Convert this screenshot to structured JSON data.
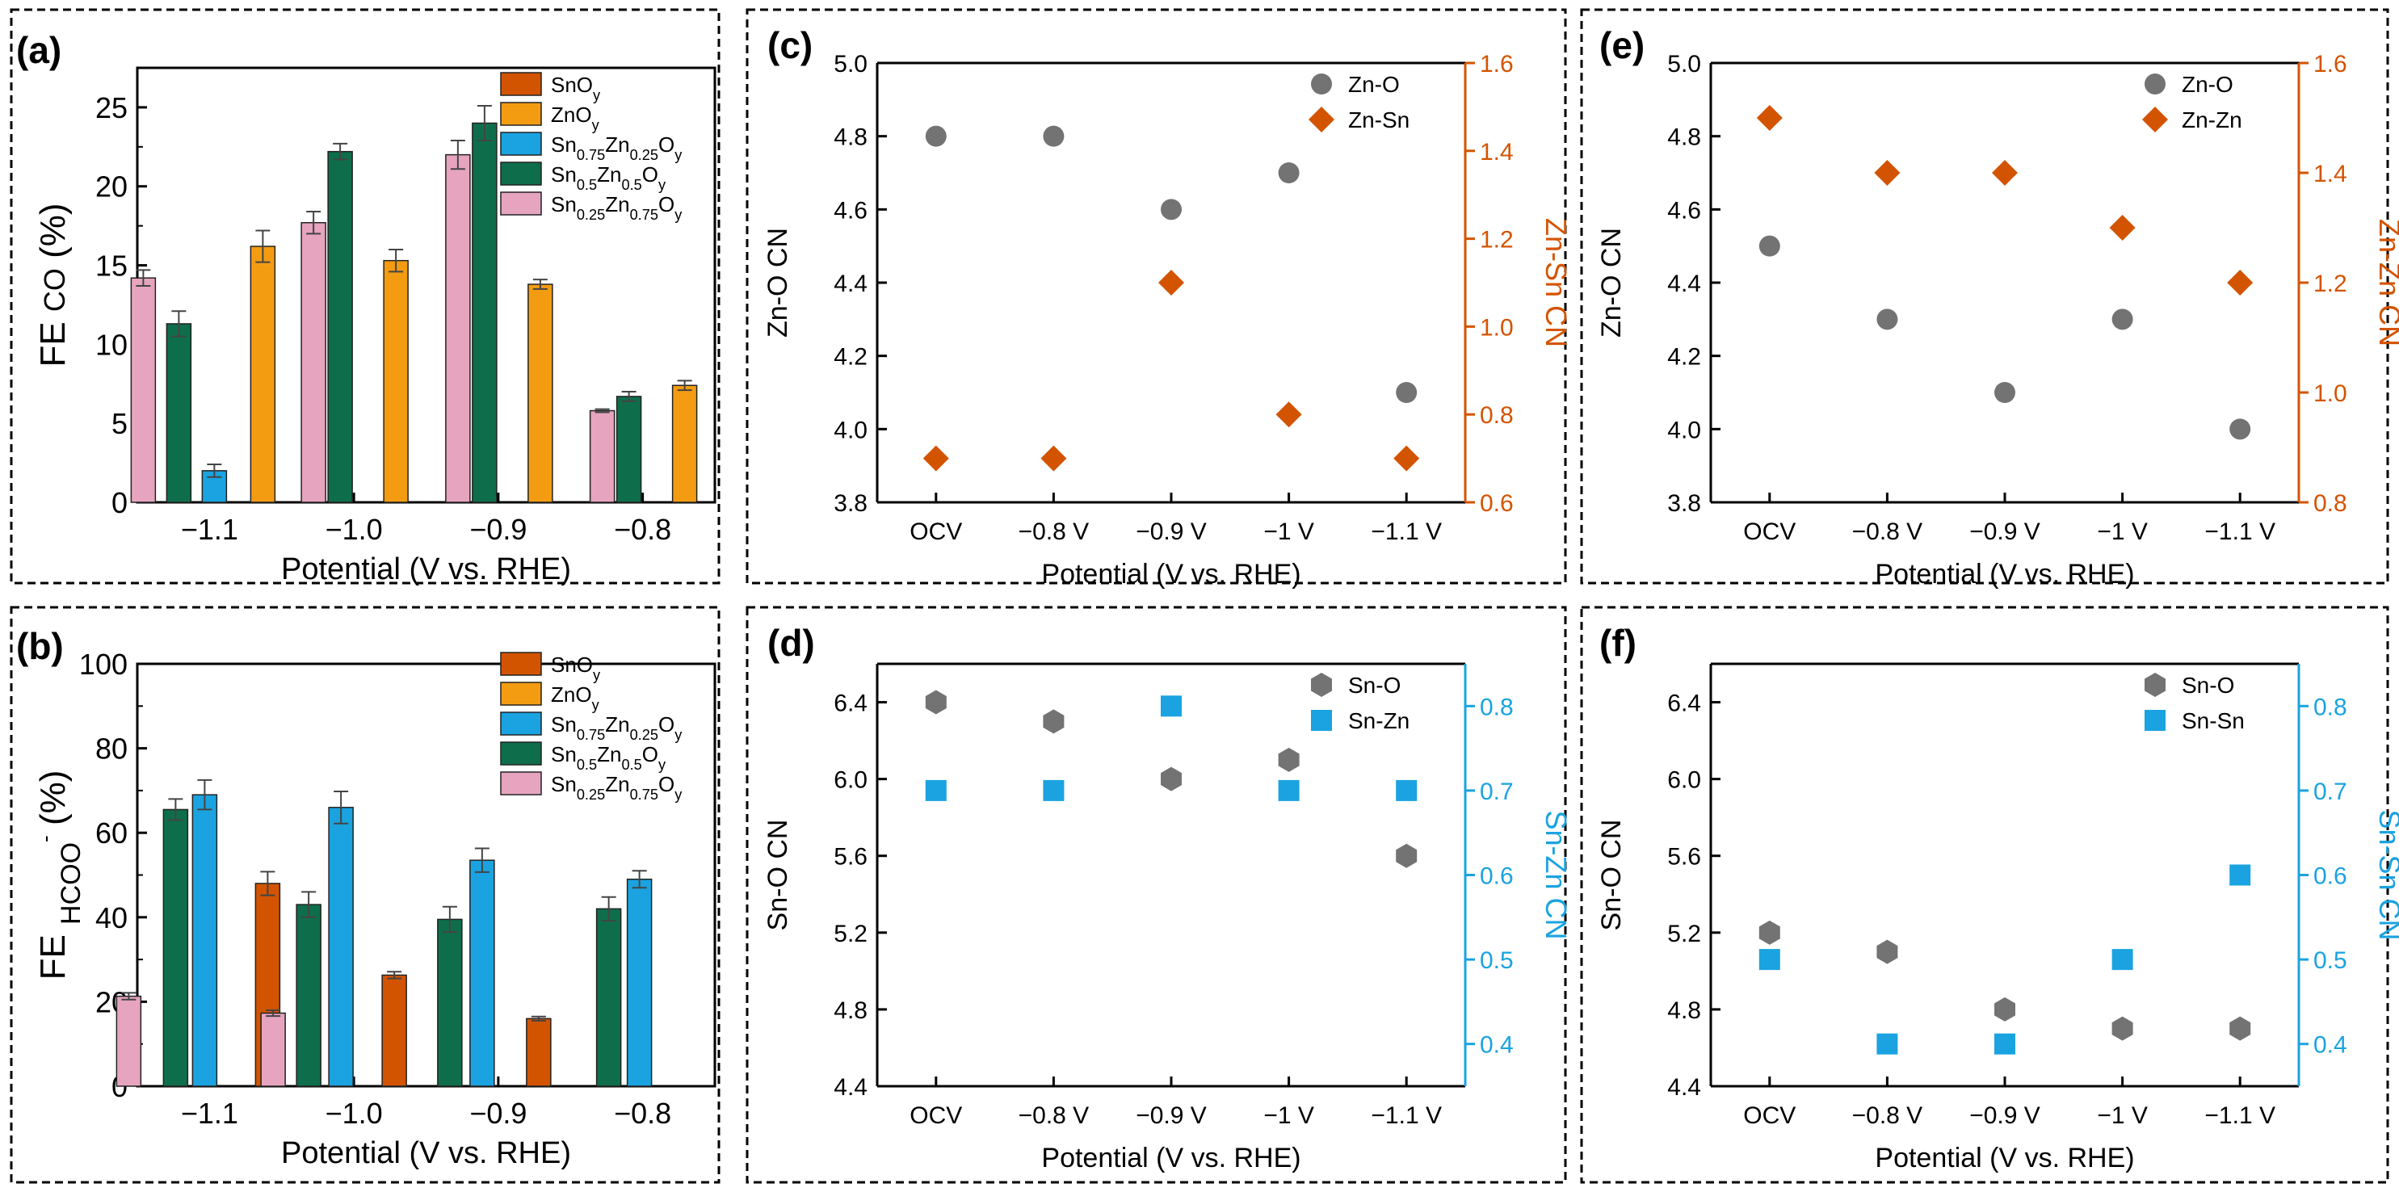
{
  "colors": {
    "SnOy": "#d35400",
    "ZnOy": "#f39c12",
    "Sn075": "#1aa3e0",
    "Sn05": "#0e6e4b",
    "Sn025": "#e6a4bf",
    "grey": "#737373",
    "orange": "#d35400",
    "blue": "#1aa3e0",
    "frame": "#000000"
  },
  "chart_data": [
    {
      "panel": "a",
      "label": "(a)",
      "type": "bar",
      "xlabel": "Potential (V vs. RHE)",
      "ylabel": "FE CO (%)",
      "ylim": [
        0,
        27.5
      ],
      "yticks": [
        0,
        5,
        10,
        15,
        20,
        25
      ],
      "categories": [
        "−1.1",
        "−1.0",
        "−0.9",
        "−0.8"
      ],
      "legend": [
        "SnO_y",
        "ZnO_y",
        "Sn_0.75Zn_0.25O_y",
        "Sn_0.5Zn_0.5O_y",
        "Sn_0.25Zn_0.75O_y"
      ],
      "series": [
        {
          "name": "Sn0.25Zn0.75Oy",
          "color_key": "Sn025",
          "values": [
            14.2,
            17.7,
            22.0,
            5.8
          ],
          "errors": [
            0.5,
            0.7,
            0.9,
            0.1
          ]
        },
        {
          "name": "Sn0.5Zn0.5Oy",
          "color_key": "Sn05",
          "values": [
            11.3,
            22.2,
            24.0,
            6.7
          ],
          "errors": [
            0.8,
            0.5,
            1.1,
            0.3
          ]
        },
        {
          "name": "Sn0.75Zn0.25Oy",
          "color_key": "Sn075",
          "values": [
            2.0,
            null,
            null,
            null
          ],
          "errors": [
            0.4,
            0,
            0,
            0
          ]
        },
        {
          "name": "ZnOy",
          "color_key": "ZnOy",
          "values": [
            16.2,
            15.3,
            13.8,
            7.4
          ],
          "errors": [
            1.0,
            0.7,
            0.3,
            0.3
          ]
        },
        {
          "name": "SnOy",
          "color_key": "SnOy",
          "values": [
            null,
            null,
            null,
            null
          ],
          "errors": [
            0,
            0,
            0,
            0
          ]
        }
      ]
    },
    {
      "panel": "b",
      "label": "(b)",
      "type": "bar",
      "xlabel": "Potential (V vs. RHE)",
      "ylabel": "FE HCOO⁻ (%)",
      "ylim": [
        0,
        100
      ],
      "yticks": [
        0,
        20,
        40,
        60,
        80,
        100
      ],
      "categories": [
        "−1.1",
        "−1.0",
        "−0.9",
        "−0.8"
      ],
      "legend": [
        "SnO_y",
        "ZnO_y",
        "Sn_0.75Zn_0.25O_y",
        "Sn_0.5Zn_0.5O_y",
        "Sn_0.25Zn_0.75O_y"
      ],
      "series": [
        {
          "name": "Sn0.25Zn0.75Oy",
          "color_key": "Sn025",
          "values": [
            21.3,
            17.3,
            null,
            null
          ],
          "errors": [
            0.8,
            0.7,
            0,
            0
          ]
        },
        {
          "name": "Sn0.5Zn0.5Oy",
          "color_key": "Sn05",
          "values": [
            65.5,
            43.0,
            39.5,
            42.0
          ],
          "errors": [
            2.5,
            3.0,
            3.0,
            2.8
          ]
        },
        {
          "name": "Sn0.75Zn0.25Oy",
          "color_key": "Sn075",
          "values": [
            69.0,
            66.0,
            53.5,
            49.0
          ],
          "errors": [
            3.5,
            3.8,
            2.8,
            2.0
          ]
        },
        {
          "name": "ZnOy",
          "color_key": "ZnOy",
          "values": [
            null,
            null,
            null,
            null
          ],
          "errors": [
            0,
            0,
            0,
            0
          ]
        },
        {
          "name": "SnOy",
          "color_key": "SnOy",
          "values": [
            48.0,
            26.3,
            16.0,
            null
          ],
          "errors": [
            2.8,
            0.8,
            0.5,
            0
          ]
        }
      ]
    },
    {
      "panel": "c",
      "label": "(c)",
      "type": "scatter",
      "xlabel": "Potential (V vs. RHE)",
      "x": [
        "OCV",
        "−0.8 V",
        "−0.9 V",
        "−1 V",
        "−1.1 V"
      ],
      "ylabel_left": "Zn-O CN",
      "ylim_left": [
        3.8,
        5.0
      ],
      "yticks_left": [
        "3.8",
        "4.0",
        "4.2",
        "4.4",
        "4.6",
        "4.8",
        "5.0"
      ],
      "ylabel_right": "Zn-Sn CN",
      "ylim_right": [
        0.6,
        1.6
      ],
      "yticks_right": [
        "0.6",
        "0.8",
        "1.0",
        "1.2",
        "1.4",
        "1.6"
      ],
      "right_color_key": "orange",
      "series": [
        {
          "name": "Zn-O",
          "axis": "left",
          "marker": "circle",
          "color_key": "grey",
          "values": [
            4.8,
            4.8,
            4.6,
            4.7,
            4.1
          ]
        },
        {
          "name": "Zn-Sn",
          "axis": "right",
          "marker": "diamond",
          "color_key": "orange",
          "values": [
            0.7,
            0.7,
            1.1,
            0.8,
            0.7
          ]
        }
      ]
    },
    {
      "panel": "d",
      "label": "(d)",
      "type": "scatter",
      "xlabel": "Potential (V vs. RHE)",
      "x": [
        "OCV",
        "−0.8 V",
        "−0.9 V",
        "−1 V",
        "−1.1 V"
      ],
      "ylabel_left": "Sn-O CN",
      "ylim_left": [
        4.4,
        6.6
      ],
      "yticks_left": [
        "4.4",
        "4.8",
        "5.2",
        "5.6",
        "6.0",
        "6.4"
      ],
      "ylabel_right": "Sn-Zn CN",
      "ylim_right": [
        0.35,
        0.85
      ],
      "yticks_right": [
        "0.4",
        "0.5",
        "0.6",
        "0.7",
        "0.8"
      ],
      "right_color_key": "blue",
      "series": [
        {
          "name": "Sn-O",
          "axis": "left",
          "marker": "hexagon",
          "color_key": "grey",
          "values": [
            6.4,
            6.3,
            6.0,
            6.1,
            5.6
          ]
        },
        {
          "name": "Sn-Zn",
          "axis": "right",
          "marker": "square",
          "color_key": "blue",
          "values": [
            0.7,
            0.7,
            0.8,
            0.7,
            0.7
          ]
        }
      ]
    },
    {
      "panel": "e",
      "label": "(e)",
      "type": "scatter",
      "xlabel": "Potential (V vs. RHE)",
      "x": [
        "OCV",
        "−0.8 V",
        "−0.9 V",
        "−1 V",
        "−1.1 V"
      ],
      "ylabel_left": "Zn-O CN",
      "ylim_left": [
        3.8,
        5.0
      ],
      "yticks_left": [
        "3.8",
        "4.0",
        "4.2",
        "4.4",
        "4.6",
        "4.8",
        "5.0"
      ],
      "ylabel_right": "Zn-Zn CN",
      "ylim_right": [
        0.8,
        1.6
      ],
      "yticks_right": [
        "0.8",
        "1.0",
        "1.2",
        "1.4",
        "1.6"
      ],
      "right_color_key": "orange",
      "series": [
        {
          "name": "Zn-O",
          "axis": "left",
          "marker": "circle",
          "color_key": "grey",
          "values": [
            4.5,
            4.3,
            4.1,
            4.3,
            4.0
          ]
        },
        {
          "name": "Zn-Zn",
          "axis": "right",
          "marker": "diamond",
          "color_key": "orange",
          "values": [
            1.5,
            1.4,
            1.4,
            1.3,
            1.2
          ]
        }
      ]
    },
    {
      "panel": "f",
      "label": "(f)",
      "type": "scatter",
      "xlabel": "Potential (V vs. RHE)",
      "x": [
        "OCV",
        "−0.8 V",
        "−0.9 V",
        "−1 V",
        "−1.1 V"
      ],
      "ylabel_left": "Sn-O CN",
      "ylim_left": [
        4.4,
        6.6
      ],
      "yticks_left": [
        "4.4",
        "4.8",
        "5.2",
        "5.6",
        "6.0",
        "6.4"
      ],
      "ylabel_right": "Sn-Sn CN",
      "ylim_right": [
        0.35,
        0.85
      ],
      "yticks_right": [
        "0.4",
        "0.5",
        "0.6",
        "0.7",
        "0.8"
      ],
      "right_color_key": "blue",
      "series": [
        {
          "name": "Sn-O",
          "axis": "left",
          "marker": "hexagon",
          "color_key": "grey",
          "values": [
            5.2,
            5.1,
            4.8,
            4.7,
            4.7
          ]
        },
        {
          "name": "Sn-Sn",
          "axis": "right",
          "marker": "square",
          "color_key": "blue",
          "values": [
            0.5,
            0.4,
            0.4,
            0.5,
            0.6
          ]
        }
      ]
    }
  ]
}
